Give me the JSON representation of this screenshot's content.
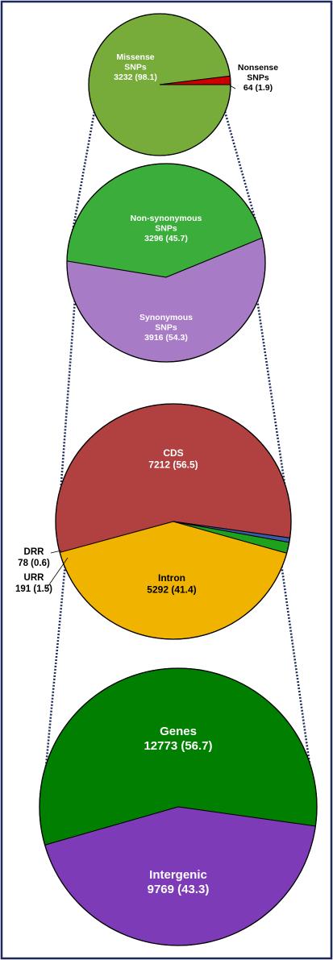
{
  "chart_data": [
    {
      "type": "pie",
      "slices": [
        {
          "label": "Missense\nSNPs",
          "value": 3232,
          "pct": 98.1,
          "color": "#77ac3a"
        },
        {
          "label": "Nonsense\nSNPs",
          "value": 64,
          "pct": 1.9,
          "color": "#cc0000"
        }
      ]
    },
    {
      "type": "pie",
      "slices": [
        {
          "label": "Non-synonymous\nSNPs",
          "value": 3296,
          "pct": 45.7,
          "color": "#3aad3a"
        },
        {
          "label": "Synonymous\nSNPs",
          "value": 3916,
          "pct": 54.3,
          "color": "#a87bc6"
        }
      ]
    },
    {
      "type": "pie",
      "slices": [
        {
          "label": "CDS",
          "value": 7212,
          "pct": 56.5,
          "color": "#b04140"
        },
        {
          "label": "Intron",
          "value": 5292,
          "pct": 41.4,
          "color": "#f0b400"
        },
        {
          "label": "URR",
          "value": 191,
          "pct": 1.5,
          "color": "#1ea21e"
        },
        {
          "label": "DRR",
          "value": 78,
          "pct": 0.6,
          "color": "#3b5aa8"
        }
      ]
    },
    {
      "type": "pie",
      "slices": [
        {
          "label": "Genes",
          "value": 12773,
          "pct": 56.7,
          "color": "#007f00"
        },
        {
          "label": "Intergenic",
          "value": 9769,
          "pct": 43.3,
          "color": "#7e3bb8"
        }
      ]
    }
  ],
  "colors": {
    "frame": "#1f2a5c",
    "connector": "#1f2a5c",
    "outline": "#000000"
  }
}
